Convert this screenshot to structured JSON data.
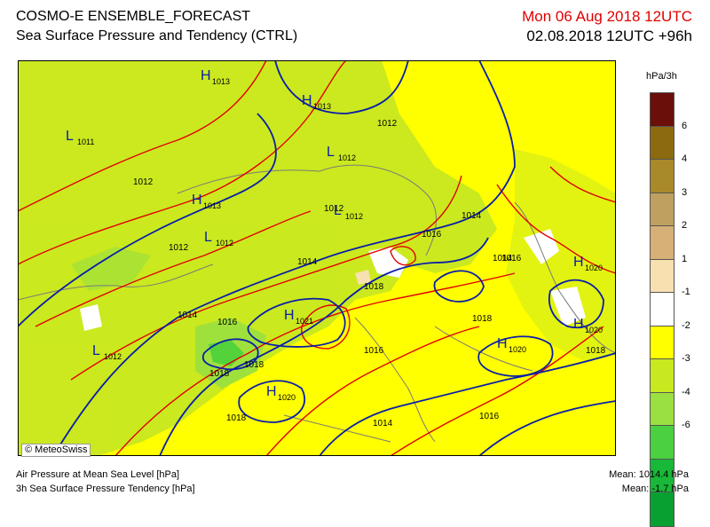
{
  "header": {
    "title": "COSMO-E ENSEMBLE_FORECAST",
    "subtitle": "Sea Surface Pressure and Tendency (CTRL)",
    "valid_time": "Mon 06 Aug 2018 12UTC",
    "init_time": "02.08.2018 12UTC +96h"
  },
  "colors": {
    "valid_time": "#e00000",
    "isobar": "#0a1ea8",
    "tendency_isoline": "#e00000",
    "sea": "#ffff00"
  },
  "map": {
    "isobar_labels": [
      {
        "text": "1012"
      },
      {
        "text": "1012"
      },
      {
        "text": "1012"
      },
      {
        "text": "1012"
      },
      {
        "text": "1014"
      },
      {
        "text": "1014"
      },
      {
        "text": "1014"
      },
      {
        "text": "1014"
      },
      {
        "text": "1014"
      },
      {
        "text": "1016"
      },
      {
        "text": "1016"
      },
      {
        "text": "1016"
      },
      {
        "text": "1016"
      },
      {
        "text": "1016"
      },
      {
        "text": "1018"
      },
      {
        "text": "1018"
      },
      {
        "text": "1018"
      },
      {
        "text": "1018"
      },
      {
        "text": "1018"
      },
      {
        "text": "1018"
      }
    ],
    "pressure_centres": [
      {
        "letter": "H",
        "value": "1013"
      },
      {
        "letter": "H",
        "value": "1013"
      },
      {
        "letter": "L",
        "value": "1011"
      },
      {
        "letter": "L",
        "value": "1012"
      },
      {
        "letter": "H",
        "value": "1013"
      },
      {
        "letter": "L",
        "value": "1012"
      },
      {
        "letter": "L",
        "value": "1012"
      },
      {
        "letter": "H",
        "value": "1020"
      },
      {
        "letter": "H",
        "value": "1021"
      },
      {
        "letter": "H",
        "value": "1020"
      },
      {
        "letter": "L",
        "value": "1012"
      },
      {
        "letter": "H",
        "value": "1020"
      },
      {
        "letter": "H",
        "value": "1020"
      }
    ]
  },
  "legend": {
    "unit": "hPa/3h",
    "colors": [
      "#6a0f0a",
      "#8b6a10",
      "#a88a2a",
      "#bfa060",
      "#d6b076",
      "#f8e0b0",
      "#ffffff",
      "#ffff00",
      "#c8e820",
      "#9ae040",
      "#4ad040",
      "#18b838",
      "#08a030"
    ],
    "labels": [
      "6",
      "4",
      "3",
      "2",
      "1",
      "-1",
      "-2",
      "-3",
      "-4",
      "-6"
    ]
  },
  "footer": {
    "copyright": "© MeteoSwiss",
    "line1": "Air Pressure at Mean Sea Level [hPa]",
    "line2": "3h Sea Surface Pressure Tendency [hPa]",
    "mean_pressure": "Mean: 1014.4 hPa",
    "mean_tendency": "Mean:   -1.7 hPa"
  }
}
